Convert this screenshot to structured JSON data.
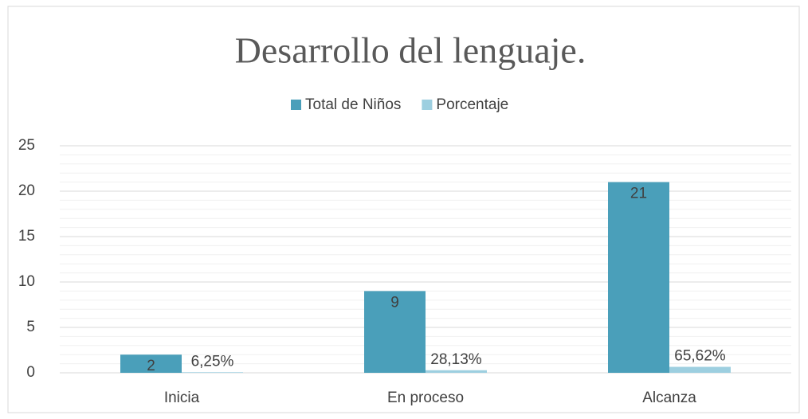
{
  "chart_data": {
    "type": "bar",
    "title": "Desarrollo del lenguaje.",
    "categories": [
      "Inicia",
      "En proceso",
      "Alcanza"
    ],
    "series": [
      {
        "name": "Total de Niños",
        "color": "#4a9fba",
        "values": [
          2,
          9,
          21
        ]
      },
      {
        "name": "Porcentaje",
        "color": "#9dcfe0",
        "values": [
          0.0625,
          0.2813,
          0.6562
        ],
        "value_labels": [
          "6,25%",
          "28,13%",
          "65,62%"
        ]
      }
    ],
    "ylim": [
      0,
      25
    ],
    "yticks": [
      0,
      5,
      10,
      15,
      20,
      25
    ],
    "grid": true,
    "legend": "top"
  }
}
